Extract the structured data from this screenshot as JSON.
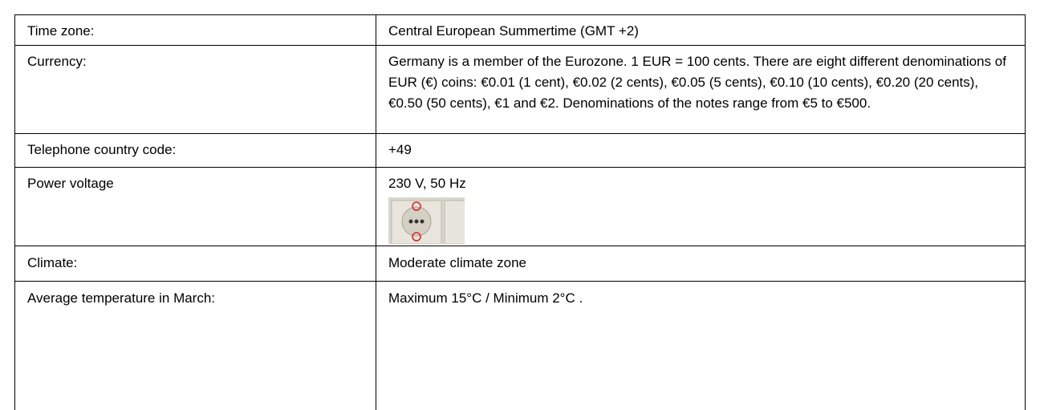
{
  "table": {
    "rows": [
      [
        "Time zone:",
        "Central European Summertime (GMT +2)"
      ],
      [
        "Currency:",
        "Germany is a member of the Eurozone. 1 EUR = 100 cents. There are eight different denominations of EUR (€) coins: €0.01 (1 cent), €0.02 (2 cents), €0.05 (5 cents), €0.10 (10 cents), €0.20 (20 cents), €0.50 (50 cents), €1 and €2. Denominations of the notes range from €5 to €500."
      ],
      [
        "Telephone country code:",
        "+49"
      ],
      [
        "Power voltage",
        "230 V, 50 Hz"
      ],
      [
        "Climate:",
        "Moderate climate zone"
      ],
      [
        "Average temperature in March:",
        "Maximum 15°C / Minimum 2°C ."
      ]
    ]
  }
}
